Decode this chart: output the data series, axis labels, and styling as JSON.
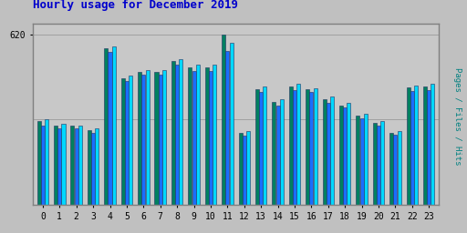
{
  "title": "Hourly usage for December 2019",
  "hours": [
    0,
    1,
    2,
    3,
    4,
    5,
    6,
    7,
    8,
    9,
    10,
    11,
    12,
    13,
    14,
    15,
    16,
    17,
    18,
    19,
    20,
    21,
    22,
    23
  ],
  "hits": [
    310,
    295,
    290,
    278,
    575,
    470,
    490,
    490,
    530,
    510,
    510,
    590,
    268,
    430,
    385,
    440,
    425,
    395,
    370,
    330,
    305,
    270,
    435,
    440
  ],
  "files": [
    290,
    278,
    278,
    262,
    555,
    452,
    472,
    472,
    510,
    488,
    488,
    560,
    252,
    412,
    362,
    418,
    412,
    372,
    355,
    315,
    288,
    255,
    415,
    418
  ],
  "pages": [
    305,
    290,
    288,
    272,
    570,
    462,
    482,
    482,
    522,
    500,
    500,
    620,
    262,
    422,
    375,
    432,
    422,
    385,
    362,
    325,
    300,
    262,
    428,
    430
  ],
  "hits_color": "#00d8ff",
  "files_color": "#1a6eff",
  "pages_color": "#008060",
  "bg_color": "#c0c0c0",
  "plot_bg": "#c8c8c8",
  "border_color": "#808080",
  "title_color": "#0000cc",
  "ylabel_color": "#008080",
  "ylabel": "Pages / Files / Hits",
  "ytick": 620,
  "ylim": [
    0,
    660
  ],
  "xlim_left": -0.6,
  "xlim_right": 23.6
}
